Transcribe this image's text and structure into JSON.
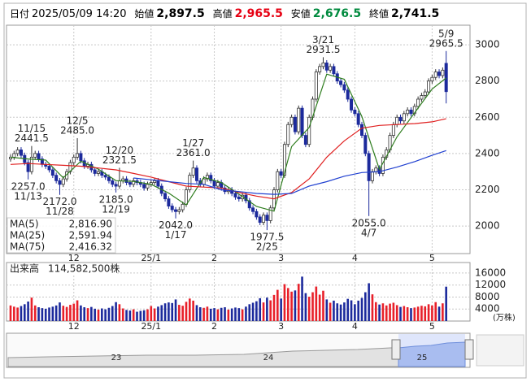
{
  "header": {
    "date_label": "日付",
    "date": "2025/05/09 14:20",
    "open_label": "始値",
    "open": "2,897.5",
    "high_label": "高値",
    "high": "2,965.5",
    "low_label": "安値",
    "low": "2,676.5",
    "close_label": "終値",
    "close": "2,741.5"
  },
  "chart_data": [
    {
      "type": "candlestick",
      "categories": [
        null,
        null,
        null,
        null,
        null,
        null,
        null,
        null,
        null,
        null,
        null,
        null,
        null,
        null,
        null,
        null,
        null,
        null,
        "12",
        null,
        null,
        null,
        null,
        null,
        null,
        null,
        null,
        null,
        null,
        null,
        null,
        null,
        null,
        null,
        null,
        null,
        null,
        null,
        null,
        null,
        "25/1",
        null,
        null,
        null,
        null,
        null,
        null,
        null,
        null,
        null,
        null,
        null,
        null,
        null,
        null,
        null,
        null,
        null,
        "2",
        null,
        null,
        null,
        null,
        null,
        null,
        null,
        null,
        null,
        null,
        null,
        null,
        null,
        null,
        null,
        null,
        null,
        null,
        "3",
        null,
        null,
        null,
        null,
        null,
        null,
        null,
        null,
        null,
        null,
        null,
        null,
        null,
        null,
        null,
        null,
        null,
        null,
        null,
        null,
        "4",
        null,
        null,
        null,
        null,
        null,
        null,
        null,
        null,
        null,
        null,
        null,
        null,
        null,
        null,
        null,
        null,
        null,
        null,
        null,
        null,
        null,
        "5",
        null,
        null,
        null,
        null
      ],
      "open": [
        2370,
        2380,
        2400,
        2420,
        2390,
        2350,
        2300,
        2380,
        2400,
        2370,
        2340,
        2330,
        2310,
        2280,
        2250,
        2230,
        2260,
        2300,
        2350,
        2380,
        2400,
        2360,
        2330,
        2340,
        2310,
        2290,
        2300,
        2280,
        2270,
        2250,
        2230,
        2220,
        2250,
        2260,
        2240,
        2230,
        2250,
        2240,
        2230,
        2210,
        2230,
        2240,
        2250,
        2220,
        2180,
        2150,
        2110,
        2090,
        2080,
        2090,
        2120,
        2200,
        2280,
        2320,
        2250,
        2230,
        2260,
        2280,
        2250,
        2220,
        2240,
        2210,
        2190,
        2200,
        2180,
        2160,
        2150,
        2170,
        2140,
        2100,
        2080,
        2050,
        2020,
        2060,
        2030,
        2100,
        2200,
        2300,
        2280,
        2450,
        2560,
        2600,
        2520,
        2650,
        2500,
        2450,
        2600,
        2700,
        2850,
        2880,
        2900,
        2860,
        2880,
        2840,
        2800,
        2780,
        2750,
        2700,
        2640,
        2620,
        2560,
        2500,
        2400,
        2250,
        2300,
        2320,
        2290,
        2380,
        2420,
        2500,
        2560,
        2600,
        2580,
        2620,
        2640,
        2620,
        2660,
        2700,
        2720,
        2740,
        2800,
        2820,
        2850,
        2830,
        2897.5
      ],
      "high": [
        2395,
        2415,
        2435,
        2435,
        2405,
        2365,
        2441.5,
        2415,
        2415,
        2385,
        2355,
        2345,
        2325,
        2295,
        2265,
        2275,
        2315,
        2365,
        2395,
        2485,
        2415,
        2375,
        2355,
        2355,
        2325,
        2315,
        2315,
        2295,
        2285,
        2265,
        2245,
        2321.5,
        2275,
        2275,
        2255,
        2265,
        2265,
        2255,
        2245,
        2245,
        2255,
        2265,
        2265,
        2235,
        2195,
        2165,
        2125,
        2105,
        2105,
        2135,
        2215,
        2295,
        2361,
        2335,
        2265,
        2275,
        2295,
        2295,
        2265,
        2255,
        2255,
        2225,
        2215,
        2215,
        2195,
        2175,
        2185,
        2185,
        2155,
        2115,
        2095,
        2065,
        2075,
        2075,
        2115,
        2215,
        2315,
        2315,
        2465,
        2575,
        2615,
        2615,
        2665,
        2665,
        2515,
        2615,
        2715,
        2865,
        2895,
        2931.5,
        2915,
        2895,
        2895,
        2855,
        2815,
        2795,
        2765,
        2715,
        2655,
        2635,
        2575,
        2515,
        2415,
        2315,
        2335,
        2335,
        2395,
        2435,
        2515,
        2575,
        2615,
        2615,
        2635,
        2655,
        2655,
        2675,
        2715,
        2735,
        2755,
        2815,
        2835,
        2865,
        2865,
        2875,
        2965.5
      ],
      "low": [
        2355,
        2365,
        2385,
        2375,
        2335,
        2257,
        2285,
        2365,
        2355,
        2325,
        2315,
        2295,
        2265,
        2235,
        2172,
        2215,
        2245,
        2285,
        2335,
        2365,
        2345,
        2315,
        2315,
        2295,
        2275,
        2275,
        2265,
        2255,
        2235,
        2215,
        2185,
        2205,
        2235,
        2225,
        2215,
        2215,
        2225,
        2215,
        2195,
        2195,
        2215,
        2225,
        2205,
        2165,
        2135,
        2095,
        2075,
        2042,
        2065,
        2075,
        2105,
        2185,
        2265,
        2235,
        2215,
        2215,
        2245,
        2235,
        2205,
        2205,
        2195,
        2175,
        2175,
        2165,
        2145,
        2135,
        2135,
        2125,
        2085,
        2065,
        2035,
        2005,
        2005,
        1977.5,
        2015,
        2085,
        2185,
        2265,
        2265,
        2435,
        2545,
        2505,
        2505,
        2485,
        2435,
        2435,
        2585,
        2685,
        2835,
        2865,
        2845,
        2845,
        2825,
        2785,
        2765,
        2735,
        2685,
        2625,
        2605,
        2545,
        2485,
        2385,
        2055,
        2235,
        2285,
        2275,
        2275,
        2365,
        2405,
        2485,
        2545,
        2565,
        2565,
        2605,
        2605,
        2605,
        2645,
        2685,
        2705,
        2725,
        2785,
        2805,
        2815,
        2815,
        2676.5
      ],
      "close": [
        2380,
        2400,
        2420,
        2390,
        2350,
        2300,
        2380,
        2400,
        2370,
        2340,
        2330,
        2310,
        2280,
        2250,
        2230,
        2260,
        2300,
        2350,
        2380,
        2400,
        2360,
        2330,
        2340,
        2310,
        2290,
        2300,
        2280,
        2270,
        2250,
        2230,
        2220,
        2250,
        2260,
        2240,
        2230,
        2250,
        2240,
        2230,
        2210,
        2230,
        2240,
        2250,
        2220,
        2180,
        2150,
        2110,
        2090,
        2080,
        2090,
        2120,
        2200,
        2280,
        2320,
        2250,
        2230,
        2260,
        2280,
        2250,
        2220,
        2240,
        2210,
        2190,
        2200,
        2180,
        2160,
        2150,
        2170,
        2140,
        2100,
        2080,
        2050,
        2020,
        2060,
        2030,
        2100,
        2200,
        2300,
        2280,
        2450,
        2560,
        2600,
        2520,
        2650,
        2500,
        2450,
        2600,
        2700,
        2850,
        2880,
        2900,
        2860,
        2880,
        2840,
        2800,
        2780,
        2750,
        2700,
        2640,
        2620,
        2560,
        2500,
        2400,
        2250,
        2300,
        2320,
        2290,
        2380,
        2420,
        2500,
        2560,
        2600,
        2580,
        2620,
        2640,
        2620,
        2660,
        2700,
        2720,
        2740,
        2800,
        2820,
        2850,
        2830,
        2860,
        2741.5
      ],
      "up_color": "#ffffff",
      "down_color": "#1c2a9c",
      "outline_color": "#333333",
      "ylim": [
        1848,
        3108
      ],
      "yticks": [
        2000,
        2200,
        2400,
        2600,
        2800,
        3000
      ],
      "grid": true,
      "annotations": [
        {
          "date": "11/15",
          "price": {
            "value": 2441.5,
            "label": "2441.5"
          },
          "kind": "high"
        },
        {
          "date": "11/13",
          "price": {
            "value": 2257,
            "label": "2257.0"
          },
          "kind": "low"
        },
        {
          "date": "12/5",
          "price": {
            "value": 2485,
            "label": "2485.0"
          },
          "kind": "high"
        },
        {
          "date": "11/28",
          "price": {
            "value": 2172,
            "label": "2172.0"
          },
          "kind": "low"
        },
        {
          "date": "12/20",
          "price": {
            "value": 2321.5,
            "label": "2321.5"
          },
          "kind": "high"
        },
        {
          "date": "12/19",
          "price": {
            "value": 2185,
            "label": "2185.0"
          },
          "kind": "low"
        },
        {
          "date": "1/27",
          "price": {
            "value": 2361,
            "label": "2361.0"
          },
          "kind": "high"
        },
        {
          "date": "1/17",
          "price": {
            "value": 2042,
            "label": "2042.0"
          },
          "kind": "low"
        },
        {
          "date": "2/25",
          "price": {
            "value": 1977.5,
            "label": "1977.5"
          },
          "kind": "low"
        },
        {
          "date": "3/21",
          "price": {
            "value": 2931.5,
            "label": "2931.5"
          },
          "kind": "high"
        },
        {
          "date": "4/7",
          "price": {
            "value": 2055,
            "label": "2055.0"
          },
          "kind": "low"
        },
        {
          "date": "5/9",
          "price": {
            "value": 2965.5,
            "label": "2965.5"
          },
          "kind": "high"
        }
      ],
      "series": [
        {
          "name": "MA(5)",
          "value_label": "2,816.90",
          "color": "#2e7d1e",
          "x": [
            0,
            5,
            10,
            15,
            20,
            25,
            30,
            35,
            40,
            45,
            50,
            55,
            60,
            65,
            70,
            75,
            80,
            85,
            90,
            95,
            100,
            105,
            110,
            115,
            120,
            124
          ],
          "values": [
            2380,
            2370,
            2364,
            2266,
            2358,
            2314,
            2250,
            2246,
            2230,
            2182,
            2116,
            2268,
            2240,
            2176,
            2108,
            2082,
            2438,
            2544,
            2838,
            2810,
            2604,
            2312,
            2492,
            2624,
            2756,
            2816.9
          ]
        },
        {
          "name": "MA(25)",
          "value_label": "2,591.94",
          "color": "#e02020",
          "x": [
            0,
            5,
            10,
            15,
            20,
            25,
            30,
            35,
            40,
            45,
            50,
            55,
            60,
            65,
            70,
            75,
            80,
            85,
            90,
            95,
            100,
            105,
            110,
            115,
            120,
            124
          ],
          "values": [
            2340,
            2345,
            2340,
            2335,
            2330,
            2320,
            2310,
            2290,
            2270,
            2245,
            2220,
            2215,
            2210,
            2185,
            2165,
            2150,
            2185,
            2260,
            2380,
            2470,
            2540,
            2555,
            2560,
            2565,
            2575,
            2591.94
          ]
        },
        {
          "name": "MA(75)",
          "value_label": "2,416.32",
          "color": "#2040d0",
          "x": [
            35,
            40,
            45,
            50,
            55,
            60,
            65,
            70,
            75,
            80,
            85,
            90,
            95,
            100,
            105,
            110,
            115,
            120,
            124
          ],
          "values": [
            2265,
            2255,
            2245,
            2235,
            2230,
            2200,
            2190,
            2180,
            2175,
            2180,
            2220,
            2245,
            2275,
            2295,
            2300,
            2325,
            2355,
            2390,
            2416.32
          ]
        }
      ]
    },
    {
      "type": "bar",
      "title": "出来高",
      "subtitle": "114,582,500株",
      "unit_label": "(万株)",
      "categories": [
        null,
        null,
        null,
        null,
        null,
        null,
        null,
        null,
        null,
        null,
        null,
        null,
        null,
        null,
        null,
        null,
        null,
        null,
        "12",
        null,
        null,
        null,
        null,
        null,
        null,
        null,
        null,
        null,
        null,
        null,
        null,
        null,
        null,
        null,
        null,
        null,
        null,
        null,
        null,
        null,
        "25/1",
        null,
        null,
        null,
        null,
        null,
        null,
        null,
        null,
        null,
        null,
        null,
        null,
        null,
        null,
        null,
        null,
        null,
        "2",
        null,
        null,
        null,
        null,
        null,
        null,
        null,
        null,
        null,
        null,
        null,
        null,
        null,
        null,
        null,
        null,
        null,
        null,
        "3",
        null,
        null,
        null,
        null,
        null,
        null,
        null,
        null,
        null,
        null,
        null,
        null,
        null,
        null,
        null,
        null,
        null,
        null,
        null,
        null,
        "4",
        null,
        null,
        null,
        null,
        null,
        null,
        null,
        null,
        null,
        null,
        null,
        null,
        null,
        null,
        null,
        null,
        null,
        null,
        null,
        null,
        null,
        "5",
        null,
        null,
        null,
        null
      ],
      "values": [
        5200,
        4800,
        4500,
        5000,
        5600,
        6500,
        7800,
        5200,
        4600,
        4300,
        4100,
        4500,
        4800,
        5200,
        6200,
        5100,
        4700,
        5400,
        5800,
        6900,
        5200,
        4600,
        4300,
        4700,
        4100,
        3800,
        4200,
        3900,
        4400,
        5000,
        6300,
        5600,
        4200,
        3700,
        3500,
        3900,
        3100,
        3400,
        3600,
        3900,
        5000,
        4200,
        4800,
        5300,
        5900,
        6200,
        6000,
        7200,
        5400,
        5100,
        6400,
        7500,
        6800,
        5300,
        4600,
        4400,
        4800,
        4100,
        4300,
        3900,
        4400,
        4600,
        3800,
        4200,
        4500,
        4300,
        3900,
        4800,
        5600,
        6100,
        6600,
        7600,
        6200,
        7800,
        6900,
        8700,
        10400,
        7500,
        12300,
        11000,
        9800,
        10200,
        12400,
        14800,
        9300,
        8100,
        9600,
        11500,
        8800,
        10100,
        7200,
        6100,
        6800,
        5900,
        5500,
        6200,
        7400,
        6900,
        5600,
        6800,
        7700,
        9600,
        12600,
        8900,
        6300,
        5500,
        5900,
        5200,
        5800,
        6100,
        5300,
        4700,
        5000,
        4600,
        4300,
        4500,
        4800,
        5100,
        4900,
        5600,
        5200,
        6300,
        4800,
        5900,
        11458.25
      ],
      "up_color": "#e8202a",
      "down_color": "#1c2a9c",
      "ylim": [
        0,
        19500
      ],
      "yticks": [
        4000,
        8000,
        12000,
        16000
      ],
      "grid": true
    }
  ],
  "navigator": {
    "labels": [
      "23",
      "24",
      "25"
    ]
  }
}
